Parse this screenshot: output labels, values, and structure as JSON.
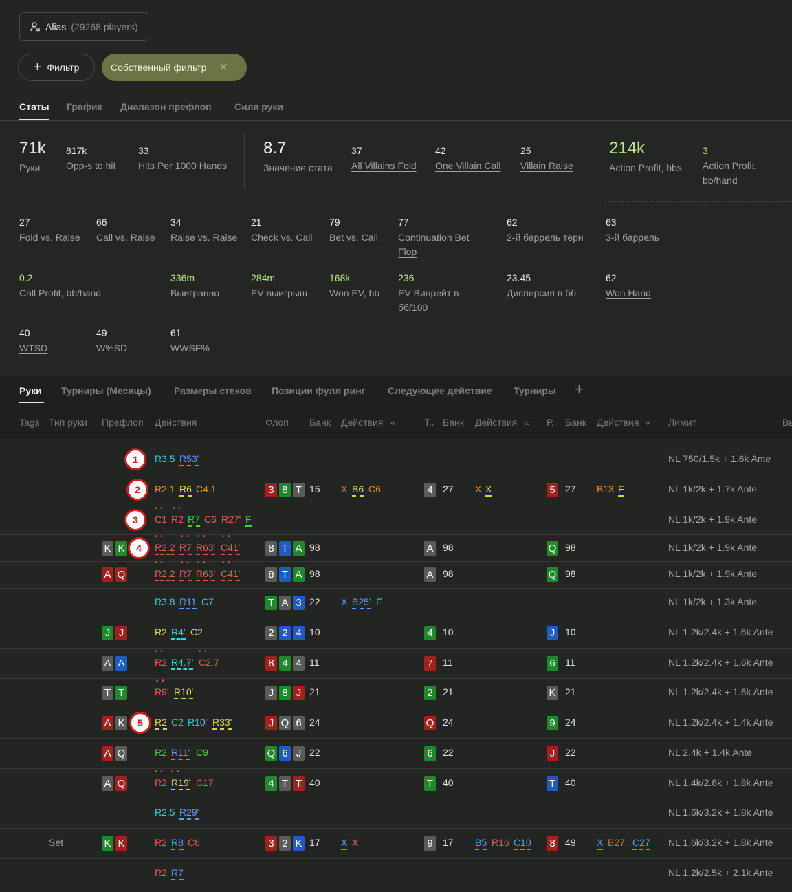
{
  "alias": {
    "label": "Alias",
    "count": "(29268 players)"
  },
  "filters": {
    "add_label": "Фильтр",
    "custom_label": "Собственный фильтр"
  },
  "tabs": [
    "Статы",
    "График",
    "Диапазон префлоп",
    "Сила руки"
  ],
  "stats": {
    "hands": {
      "value": "71k",
      "label": "Руки"
    },
    "opps": {
      "value": "817k",
      "label": "Opp-s to hit"
    },
    "hits": {
      "value": "33",
      "label": "Hits Per 1000 Hands"
    },
    "stat_value": {
      "value": "8.7",
      "label": "Значение стата"
    },
    "all_fold": {
      "value": "37",
      "label": "All Villains Fold"
    },
    "one_call": {
      "value": "42",
      "label": "One Villain Call"
    },
    "villain_raise": {
      "value": "25",
      "label": "Villain Raise"
    },
    "action_profit": {
      "value": "214k",
      "label": "Action Profit, bbs"
    },
    "action_profit_hand": {
      "value": "3",
      "label": "Action Profit, bb/hand"
    },
    "fold_vs_raise": {
      "value": "27",
      "label": "Fold vs. Raise"
    },
    "call_vs_raise": {
      "value": "66",
      "label": "Call vs. Raise"
    },
    "raise_vs_raise": {
      "value": "34",
      "label": "Raise vs. Raise"
    },
    "check_vs_call": {
      "value": "21",
      "label": "Check vs. Call"
    },
    "bet_vs_call": {
      "value": "79",
      "label": "Bet vs. Call"
    },
    "cbet_flop": {
      "value": "77",
      "label": "Continuation Bet Flop"
    },
    "barrel2": {
      "value": "62",
      "label": "2-й баррель тёрн"
    },
    "barrel3": {
      "value": "63",
      "label": "3-й баррель"
    },
    "call_profit": {
      "value": "0.2",
      "label": "Call Profit, bb/hand"
    },
    "won": {
      "value": "336m",
      "label": "Выигранно"
    },
    "ev_won": {
      "value": "284m",
      "label": "EV выигрыш"
    },
    "won_ev": {
      "value": "168k",
      "label": "Won EV, bb"
    },
    "ev_winrate": {
      "value": "236",
      "label": "EV Винрейт в бб/100"
    },
    "variance": {
      "value": "23.45",
      "label": "Дисперсия в бб"
    },
    "won_hand": {
      "value": "62",
      "label": "Won Hand"
    },
    "wtsd": {
      "value": "40",
      "label": "WTSD"
    },
    "wsd": {
      "value": "49",
      "label": "W%SD"
    },
    "wwsf": {
      "value": "61",
      "label": "WWSF%"
    }
  },
  "hand_tabs": [
    "Руки",
    "Турниры (Месяцы)",
    "Размеры стеков",
    "Позиции фулл ринг",
    "Следующее действие",
    "Турниры"
  ],
  "columns": [
    "Tags",
    "Тип руки",
    "Префлоп",
    "Действия",
    "Флоп",
    "Банк",
    "Действия",
    "«",
    "Т..",
    "Банк",
    "Действия",
    "«",
    "Р..",
    "Банк",
    "Действия",
    "«",
    "Лимит",
    "Вы"
  ],
  "colors": {
    "red_card": "#a3201c",
    "green_card": "#1f8a2a",
    "blue_card": "#1f5cc2",
    "grey_card": "#5a5c58",
    "accent_filter": "#6b7443",
    "badge_red": "#d21b1b"
  },
  "rows": [
    {
      "badge": "1",
      "pre_actions": [
        "R3.5",
        "R53'"
      ],
      "limit": "NL 750/1.5k + 1.6k Ante"
    },
    {
      "badge": "2",
      "pre_actions": [
        "R2.1",
        "R6",
        "C4.1"
      ],
      "flop": [
        "3",
        "8",
        "T"
      ],
      "flop_pot": "15",
      "flop_actions": [
        "X",
        "B6",
        "C6"
      ],
      "turn": "4",
      "turn_pot": "27",
      "turn_actions": [
        "X",
        "X"
      ],
      "river": "5",
      "river_pot": "27",
      "river_actions": [
        "B13",
        "F"
      ],
      "limit": "NL 1k/2k + 1.7k Ante"
    },
    {
      "badge": "3",
      "pre_actions": [
        "C1",
        "R2",
        "R7",
        "C6",
        "R27'",
        "F"
      ],
      "limit": "NL 1k/2k + 1.9k Ante"
    },
    {
      "badge": "4",
      "hand": [
        "K",
        "K"
      ],
      "pre_actions": [
        "R2.2",
        "R7",
        "R63'",
        "C41'"
      ],
      "flop": [
        "8",
        "T",
        "A"
      ],
      "flop_pot": "98",
      "turn": "A",
      "turn_pot": "98",
      "river": "Q",
      "river_pot": "98",
      "limit": "NL 1k/2k + 1.9k Ante"
    },
    {
      "hand": [
        "A",
        "Q"
      ],
      "pre_actions": [
        "R2.2",
        "R7",
        "R63'",
        "C41'"
      ],
      "flop": [
        "8",
        "T",
        "A"
      ],
      "flop_pot": "98",
      "turn": "A",
      "turn_pot": "98",
      "river": "Q",
      "river_pot": "98",
      "limit": "NL 1k/2k + 1.9k Ante"
    },
    {
      "pre_actions": [
        "R3.8",
        "R11",
        "C7"
      ],
      "flop": [
        "T",
        "A",
        "3"
      ],
      "flop_pot": "22",
      "flop_actions": [
        "X",
        "B25'",
        "F"
      ],
      "limit": "NL 1k/2k + 1.3k Ante"
    },
    {
      "hand": [
        "J",
        "J"
      ],
      "pre_actions": [
        "R2",
        "R4'",
        "C2"
      ],
      "flop": [
        "2",
        "2",
        "4"
      ],
      "flop_pot": "10",
      "turn": "4",
      "turn_pot": "10",
      "river": "J",
      "river_pot": "10",
      "limit": "NL 1.2k/2.4k + 1.6k Ante"
    },
    {
      "hand": [
        "A",
        "A"
      ],
      "pre_actions": [
        "R2",
        "R4.7'",
        "C2.7"
      ],
      "flop": [
        "8",
        "4",
        "4"
      ],
      "flop_pot": "11",
      "turn": "7",
      "turn_pot": "11",
      "river": "6",
      "river_pot": "11",
      "limit": "NL 1.2k/2.4k + 1.6k Ante"
    },
    {
      "hand": [
        "T",
        "T"
      ],
      "pre_actions": [
        "R9'",
        "R10'"
      ],
      "flop": [
        "J",
        "8",
        "J"
      ],
      "flop_pot": "21",
      "turn": "2",
      "turn_pot": "21",
      "river": "K",
      "river_pot": "21",
      "limit": "NL 1.2k/2.4k + 1.6k Ante"
    },
    {
      "badge": "5",
      "hand": [
        "A",
        "K"
      ],
      "pre_actions": [
        "R2",
        "C2",
        "R10'",
        "R33'"
      ],
      "flop": [
        "J",
        "Q",
        "6"
      ],
      "flop_pot": "24",
      "turn": "Q",
      "turn_pot": "24",
      "river": "9",
      "river_pot": "24",
      "limit": "NL 1.2k/2.4k + 1.4k Ante"
    },
    {
      "hand": [
        "A",
        "Q"
      ],
      "pre_actions": [
        "R2",
        "R11'",
        "C9"
      ],
      "flop": [
        "Q",
        "6",
        "J"
      ],
      "flop_pot": "22",
      "turn": "6",
      "turn_pot": "22",
      "river": "J",
      "river_pot": "22",
      "limit": "NL 2.4k + 1.4k Ante"
    },
    {
      "hand": [
        "A",
        "Q"
      ],
      "pre_actions": [
        "R2",
        "R19'",
        "C17"
      ],
      "flop": [
        "4",
        "T",
        "T"
      ],
      "flop_pot": "40",
      "turn": "T",
      "turn_pot": "40",
      "river": "T",
      "river_pot": "40",
      "limit": "NL 1.4k/2.8k + 1.8k Ante"
    },
    {
      "pre_actions": [
        "R2.5",
        "R29'"
      ],
      "limit": "NL 1.6k/3.2k + 1.8k Ante"
    },
    {
      "tag": "Set",
      "hand": [
        "K",
        "K"
      ],
      "pre_actions": [
        "R2",
        "R8",
        "C6"
      ],
      "flop": [
        "3",
        "2",
        "K"
      ],
      "flop_pot": "17",
      "flop_actions": [
        "X",
        "X"
      ],
      "turn": "9",
      "turn_pot": "17",
      "turn_actions": [
        "B5",
        "R16",
        "C10"
      ],
      "river": "8",
      "river_pot": "49",
      "river_actions": [
        "X",
        "B27'",
        "C27"
      ],
      "limit": "NL 1.6k/3.2k + 1.8k Ante"
    },
    {
      "pre_actions": [
        "R2",
        "R7"
      ],
      "limit": "NL 1.2k/2.5k + 2.1k Ante"
    }
  ]
}
